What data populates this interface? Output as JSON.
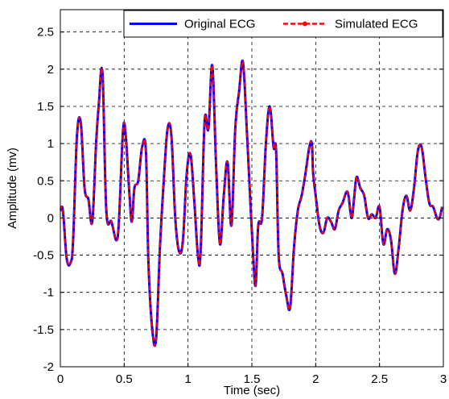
{
  "chart_data": {
    "type": "line",
    "xlabel": "Time (sec)",
    "ylabel": "Amplitude (mv)",
    "xlim": [
      0,
      3
    ],
    "ylim": [
      -2,
      2.8
    ],
    "xticks": [
      0,
      0.5,
      1,
      1.5,
      2,
      2.5,
      3
    ],
    "xtick_labels": [
      "0",
      "0.5",
      "1",
      "1.5",
      "2",
      "2.5",
      "3"
    ],
    "yticks": [
      -2,
      -1.5,
      -1,
      -0.5,
      0,
      0.5,
      1,
      1.5,
      2,
      2.5
    ],
    "ytick_labels": [
      "-2",
      "-1.5",
      "-1",
      "-0.5",
      "0",
      "0.5",
      "1",
      "1.5",
      "2",
      "2.5"
    ],
    "grid": true,
    "legend_position": "top-right",
    "series": [
      {
        "name": "Original ECG",
        "color": "#0000ff",
        "style": "solid",
        "x": [
          0,
          0.02,
          0.05,
          0.08,
          0.1,
          0.13,
          0.16,
          0.19,
          0.22,
          0.25,
          0.28,
          0.3,
          0.33,
          0.36,
          0.4,
          0.44,
          0.46,
          0.49,
          0.51,
          0.54,
          0.56,
          0.58,
          0.61,
          0.64,
          0.67,
          0.69,
          0.72,
          0.75,
          0.78,
          0.81,
          0.84,
          0.87,
          0.9,
          0.93,
          0.96,
          0.99,
          1.02,
          1.05,
          1.08,
          1.1,
          1.13,
          1.16,
          1.19,
          1.22,
          1.25,
          1.28,
          1.31,
          1.34,
          1.37,
          1.4,
          1.43,
          1.46,
          1.48,
          1.51,
          1.53,
          1.55,
          1.58,
          1.61,
          1.64,
          1.67,
          1.69,
          1.71,
          1.74,
          1.77,
          1.8,
          1.83,
          1.86,
          1.89,
          1.92,
          1.95,
          1.97,
          1.98,
          2.0,
          2.03,
          2.06,
          2.09,
          2.12,
          2.15,
          2.18,
          2.21,
          2.25,
          2.28,
          2.3,
          2.32,
          2.35,
          2.38,
          2.41,
          2.44,
          2.47,
          2.5,
          2.53,
          2.56,
          2.59,
          2.62,
          2.65,
          2.68,
          2.71,
          2.74,
          2.77,
          2.8,
          2.83,
          2.86,
          2.89,
          2.92,
          2.95,
          2.97,
          2.99
        ],
        "y": [
          0.1,
          0.1,
          -0.55,
          -0.6,
          -0.3,
          1.1,
          1.28,
          0.4,
          0.25,
          -0.05,
          1.0,
          1.5,
          1.95,
          0.1,
          -0.05,
          -0.3,
          0.0,
          1.15,
          1.15,
          0.35,
          -0.05,
          0.4,
          0.5,
          0.95,
          0.9,
          -0.6,
          -1.5,
          -1.62,
          -0.4,
          0.5,
          1.2,
          1.1,
          0.0,
          -0.45,
          -0.3,
          0.6,
          0.85,
          0.2,
          -0.55,
          -0.4,
          1.3,
          1.2,
          2.05,
          0.7,
          -0.35,
          0.3,
          0.75,
          -0.1,
          1.2,
          1.7,
          2.1,
          1.2,
          0.5,
          -0.5,
          -0.9,
          -0.1,
          0.0,
          1.0,
          1.5,
          0.95,
          0.9,
          -0.5,
          -0.75,
          -1.05,
          -1.2,
          -0.4,
          0.1,
          0.3,
          0.6,
          0.95,
          1.0,
          0.6,
          0.3,
          -0.1,
          -0.2,
          0.0,
          -0.05,
          -0.15,
          0.1,
          0.2,
          0.35,
          0.0,
          0.25,
          0.55,
          0.4,
          0.3,
          0.0,
          0.05,
          0.0,
          0.15,
          -0.35,
          -0.15,
          -0.3,
          -0.75,
          -0.4,
          0.1,
          0.3,
          0.1,
          0.4,
          0.9,
          0.95,
          0.55,
          0.2,
          0.15,
          0.0,
          0.0,
          0.15
        ]
      },
      {
        "name": "Simulated ECG",
        "color": "#ff0000",
        "style": "dashed-dot"
      }
    ]
  }
}
